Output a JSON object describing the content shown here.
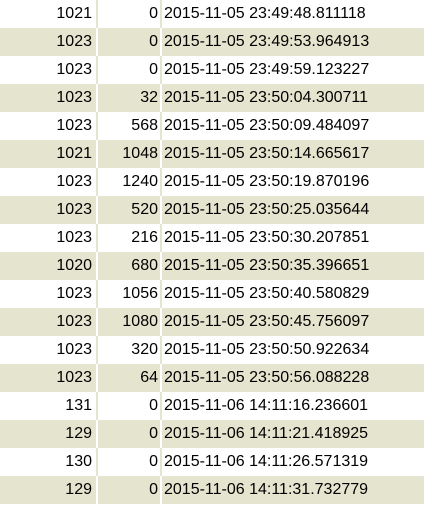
{
  "table": {
    "rows": [
      {
        "id": "1021",
        "value": "0",
        "timestamp": "2015-11-05 23:49:48.811118"
      },
      {
        "id": "1023",
        "value": "0",
        "timestamp": "2015-11-05 23:49:53.964913"
      },
      {
        "id": "1023",
        "value": "0",
        "timestamp": "2015-11-05 23:49:59.123227"
      },
      {
        "id": "1023",
        "value": "32",
        "timestamp": "2015-11-05 23:50:04.300711"
      },
      {
        "id": "1023",
        "value": "568",
        "timestamp": "2015-11-05 23:50:09.484097"
      },
      {
        "id": "1021",
        "value": "1048",
        "timestamp": "2015-11-05 23:50:14.665617"
      },
      {
        "id": "1023",
        "value": "1240",
        "timestamp": "2015-11-05 23:50:19.870196"
      },
      {
        "id": "1023",
        "value": "520",
        "timestamp": "2015-11-05 23:50:25.035644"
      },
      {
        "id": "1023",
        "value": "216",
        "timestamp": "2015-11-05 23:50:30.207851"
      },
      {
        "id": "1020",
        "value": "680",
        "timestamp": "2015-11-05 23:50:35.396651"
      },
      {
        "id": "1023",
        "value": "1056",
        "timestamp": "2015-11-05 23:50:40.580829"
      },
      {
        "id": "1023",
        "value": "1080",
        "timestamp": "2015-11-05 23:50:45.756097"
      },
      {
        "id": "1023",
        "value": "320",
        "timestamp": "2015-11-05 23:50:50.922634"
      },
      {
        "id": "1023",
        "value": "64",
        "timestamp": "2015-11-05 23:50:56.088228"
      },
      {
        "id": "131",
        "value": "0",
        "timestamp": "2015-11-06 14:11:16.236601"
      },
      {
        "id": "129",
        "value": "0",
        "timestamp": "2015-11-06 14:11:21.418925"
      },
      {
        "id": "130",
        "value": "0",
        "timestamp": "2015-11-06 14:11:26.571319"
      },
      {
        "id": "129",
        "value": "0",
        "timestamp": "2015-11-06 14:11:31.732779"
      }
    ]
  },
  "colors": {
    "row_alt": "#e5e5cf",
    "row_base": "#ffffff",
    "text": "#000000"
  }
}
